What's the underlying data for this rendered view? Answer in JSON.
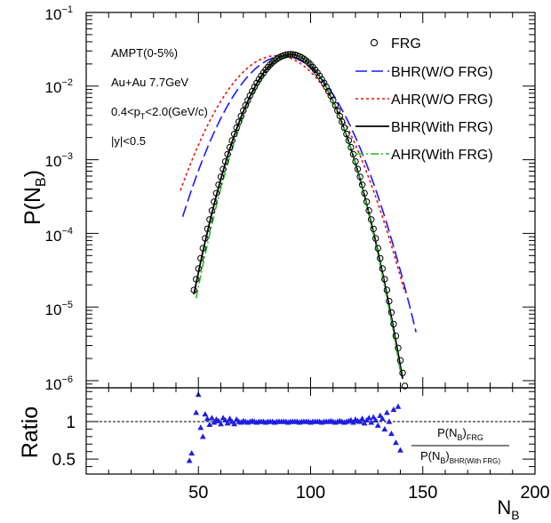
{
  "chart_data": [
    {
      "type": "line",
      "yscale": "log",
      "xlim": [
        0,
        200
      ],
      "ylim": [
        8e-07,
        0.1
      ],
      "ylabel": "P(N_B)",
      "ytick_labels": [
        {
          "value": 1e-06,
          "base": "10",
          "exp": "−6"
        },
        {
          "value": 1e-05,
          "base": "10",
          "exp": "−5"
        },
        {
          "value": 0.0001,
          "base": "10",
          "exp": "−4"
        },
        {
          "value": 0.001,
          "base": "10",
          "exp": "−3"
        },
        {
          "value": 0.01,
          "base": "10",
          "exp": "−2"
        },
        {
          "value": 0.1,
          "base": "10",
          "exp": "−1"
        }
      ],
      "annotations": [
        "AMPT(0-5%)",
        "Au+Au 7.7GeV",
        "0.4<p_T<2.0(GeV/c)",
        "|y|<0.5"
      ],
      "annotation_parts": {
        "line1": "AMPT(0-5%)",
        "line2": "Au+Au 7.7GeV",
        "line3_pre": "0.4<p",
        "line3_sub": "T",
        "line3_post": "<2.0(GeV/c)",
        "line4": "|y|<0.5"
      },
      "series": [
        {
          "name": "FRG",
          "style": "open-circle-markers",
          "color": "#000000",
          "mu": 91,
          "sigma": 11.2,
          "amp": 0.027,
          "xmin": 48,
          "xmax": 142,
          "step": 1
        },
        {
          "name": "BHR(W/O FRG)",
          "style": "long-dash",
          "color": "#1a1aff",
          "mu": 88,
          "sigma": 14.2,
          "amp": 0.0255,
          "xmin": 43,
          "xmax": 147
        },
        {
          "name": "AHR(W/O FRG)",
          "style": "short-dash",
          "color": "#ee1111",
          "mu": 85,
          "sigma": 14.8,
          "amp": 0.026,
          "xmin": 42,
          "xmax": 142
        },
        {
          "name": "BHR(With FRG)",
          "style": "solid",
          "color": "#000000",
          "mu": 91,
          "sigma": 11.1,
          "amp": 0.027,
          "xmin": 48,
          "xmax": 141
        },
        {
          "name": "AHR(With FRG)",
          "style": "dash-dot",
          "color": "#22bb22",
          "mu": 91.5,
          "sigma": 10.9,
          "amp": 0.0265,
          "xmin": 49,
          "xmax": 140
        }
      ]
    },
    {
      "type": "scatter",
      "xlabel": "N_B",
      "ylabel": "Ratio",
      "xlim": [
        0,
        200
      ],
      "ylim": [
        0.3,
        1.45
      ],
      "x_ticks": [
        50,
        100,
        150,
        200
      ],
      "y_ticks": [
        {
          "value": 1,
          "label": "1"
        },
        {
          "value": 0.5,
          "label": "0.5"
        }
      ],
      "reference_line": 1.0,
      "legend_fraction": {
        "numerator": "P(N_B)_FRG",
        "denominator": "P(N_B)_BHR(With FRG)"
      },
      "legend_parts": {
        "num_main": "P(N",
        "num_sub": "B",
        "num_close": ")",
        "num_tag": "FRG",
        "den_main": "P(N",
        "den_sub": "B",
        "den_close": ")",
        "den_tag": "BHR(With FRG)"
      },
      "marker_color": "#1f1fe0",
      "points": [
        {
          "x": 46,
          "y": 0.48
        },
        {
          "x": 47,
          "y": 0.58
        },
        {
          "x": 49,
          "y": 1.12
        },
        {
          "x": 50,
          "y": 1.36
        },
        {
          "x": 51,
          "y": 0.92
        },
        {
          "x": 52,
          "y": 0.8
        },
        {
          "x": 53,
          "y": 1.1
        },
        {
          "x": 54,
          "y": 1.04
        },
        {
          "x": 55,
          "y": 0.96
        },
        {
          "x": 56,
          "y": 1.05
        },
        {
          "x": 57,
          "y": 0.99
        },
        {
          "x": 58,
          "y": 1.03
        },
        {
          "x": 59,
          "y": 1.01
        },
        {
          "x": 60,
          "y": 0.97
        },
        {
          "x": 61,
          "y": 1.05
        },
        {
          "x": 62,
          "y": 1.02
        },
        {
          "x": 63,
          "y": 0.98
        },
        {
          "x": 64,
          "y": 1.04
        },
        {
          "x": 65,
          "y": 1.0
        },
        {
          "x": 66,
          "y": 0.97
        },
        {
          "x": 67,
          "y": 1.03
        },
        {
          "x": 68,
          "y": 1.0
        },
        {
          "x": 69,
          "y": 0.99
        },
        {
          "x": 70,
          "y": 1.01
        },
        {
          "x": 71,
          "y": 1.0
        },
        {
          "x": 72,
          "y": 0.99
        },
        {
          "x": 73,
          "y": 1.0
        },
        {
          "x": 74,
          "y": 1.01
        },
        {
          "x": 75,
          "y": 1.0
        },
        {
          "x": 76,
          "y": 0.99
        },
        {
          "x": 77,
          "y": 1.0
        },
        {
          "x": 78,
          "y": 1.0
        },
        {
          "x": 79,
          "y": 1.0
        },
        {
          "x": 80,
          "y": 0.99
        },
        {
          "x": 81,
          "y": 1.0
        },
        {
          "x": 82,
          "y": 1.0
        },
        {
          "x": 83,
          "y": 1.0
        },
        {
          "x": 84,
          "y": 0.99
        },
        {
          "x": 85,
          "y": 1.0
        },
        {
          "x": 86,
          "y": 1.0
        },
        {
          "x": 87,
          "y": 1.0
        },
        {
          "x": 88,
          "y": 1.0
        },
        {
          "x": 89,
          "y": 1.0
        },
        {
          "x": 90,
          "y": 0.99
        },
        {
          "x": 91,
          "y": 1.0
        },
        {
          "x": 92,
          "y": 1.0
        },
        {
          "x": 93,
          "y": 1.0
        },
        {
          "x": 94,
          "y": 1.0
        },
        {
          "x": 95,
          "y": 0.99
        },
        {
          "x": 96,
          "y": 1.0
        },
        {
          "x": 97,
          "y": 1.0
        },
        {
          "x": 98,
          "y": 1.0
        },
        {
          "x": 99,
          "y": 1.0
        },
        {
          "x": 100,
          "y": 0.99
        },
        {
          "x": 101,
          "y": 1.0
        },
        {
          "x": 102,
          "y": 1.0
        },
        {
          "x": 103,
          "y": 1.0
        },
        {
          "x": 104,
          "y": 1.0
        },
        {
          "x": 105,
          "y": 0.99
        },
        {
          "x": 106,
          "y": 1.0
        },
        {
          "x": 107,
          "y": 1.0
        },
        {
          "x": 108,
          "y": 1.0
        },
        {
          "x": 109,
          "y": 1.01
        },
        {
          "x": 110,
          "y": 1.0
        },
        {
          "x": 111,
          "y": 0.99
        },
        {
          "x": 112,
          "y": 1.0
        },
        {
          "x": 113,
          "y": 1.01
        },
        {
          "x": 114,
          "y": 1.0
        },
        {
          "x": 115,
          "y": 0.99
        },
        {
          "x": 116,
          "y": 1.0
        },
        {
          "x": 117,
          "y": 1.01
        },
        {
          "x": 118,
          "y": 1.02
        },
        {
          "x": 119,
          "y": 0.99
        },
        {
          "x": 120,
          "y": 1.03
        },
        {
          "x": 121,
          "y": 1.01
        },
        {
          "x": 122,
          "y": 1.0
        },
        {
          "x": 123,
          "y": 1.04
        },
        {
          "x": 124,
          "y": 0.98
        },
        {
          "x": 125,
          "y": 1.02
        },
        {
          "x": 126,
          "y": 1.05
        },
        {
          "x": 127,
          "y": 0.99
        },
        {
          "x": 128,
          "y": 1.06
        },
        {
          "x": 129,
          "y": 1.02
        },
        {
          "x": 130,
          "y": 0.95
        },
        {
          "x": 131,
          "y": 1.08
        },
        {
          "x": 132,
          "y": 1.04
        },
        {
          "x": 133,
          "y": 0.9
        },
        {
          "x": 134,
          "y": 1.12
        },
        {
          "x": 135,
          "y": 1.0
        },
        {
          "x": 136,
          "y": 0.84
        },
        {
          "x": 137,
          "y": 1.16
        },
        {
          "x": 138,
          "y": 0.72
        },
        {
          "x": 139,
          "y": 1.2
        },
        {
          "x": 140,
          "y": 0.62
        }
      ]
    }
  ]
}
